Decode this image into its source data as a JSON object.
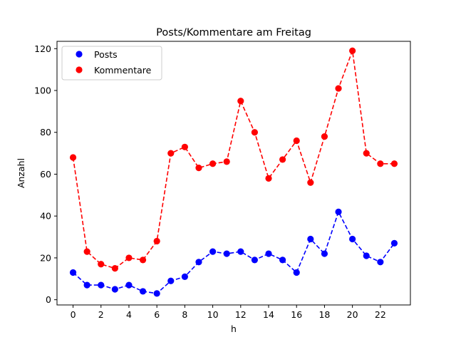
{
  "chart_data": {
    "type": "line",
    "title": "Posts/Kommentare am Freitag",
    "xlabel": "h",
    "ylabel": "Anzahl",
    "x": [
      0,
      1,
      2,
      3,
      4,
      5,
      6,
      7,
      8,
      9,
      10,
      11,
      12,
      13,
      14,
      15,
      16,
      17,
      18,
      19,
      20,
      21,
      22,
      23
    ],
    "xlim": [
      -1.15,
      24.15
    ],
    "ylim": [
      -2.5,
      123.5
    ],
    "xticks": [
      0,
      2,
      4,
      6,
      8,
      10,
      12,
      14,
      16,
      18,
      20,
      22
    ],
    "yticks": [
      0,
      20,
      40,
      60,
      80,
      100,
      120
    ],
    "grid": false,
    "legend_position": "upper left",
    "series": [
      {
        "name": "Posts",
        "color": "#0000ff",
        "line_style": "dashed",
        "marker": "circle",
        "values": [
          13,
          7,
          7,
          5,
          7,
          4,
          3,
          9,
          11,
          18,
          23,
          22,
          23,
          19,
          22,
          19,
          13,
          29,
          22,
          42,
          29,
          21,
          18,
          27
        ]
      },
      {
        "name": "Kommentare",
        "color": "#ff0000",
        "line_style": "dashed",
        "marker": "circle",
        "values": [
          68,
          23,
          17,
          15,
          20,
          19,
          28,
          70,
          73,
          63,
          65,
          66,
          95,
          80,
          58,
          67,
          76,
          56,
          78,
          101,
          119,
          70,
          65,
          65
        ]
      }
    ]
  }
}
